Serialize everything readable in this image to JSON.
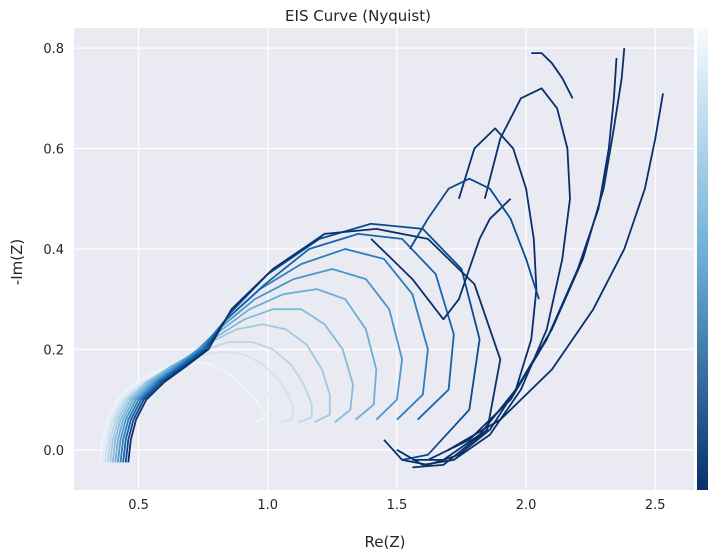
{
  "chart_data": {
    "type": "line",
    "title": "EIS Curve (Nyquist)",
    "xlabel": "Re(Z)",
    "ylabel": "-Im(Z)",
    "xlim": [
      0.25,
      2.65
    ],
    "ylim": [
      -0.08,
      0.84
    ],
    "xticks": [
      0.5,
      1.0,
      1.5,
      2.0,
      2.5
    ],
    "xtick_labels": [
      "0.5",
      "1.0",
      "1.5",
      "2.0",
      "2.5"
    ],
    "yticks": [
      0.0,
      0.2,
      0.4,
      0.6,
      0.8
    ],
    "ytick_labels": [
      "0.0",
      "0.2",
      "0.4",
      "0.6",
      "0.8"
    ],
    "grid": true,
    "colormap": {
      "name": "Blues",
      "low": "#f7fbff",
      "mid": "#6baed6",
      "high": "#08306b"
    },
    "colorbar": true,
    "background": "#eaeaf2",
    "series": [
      {
        "color": "#eef5fc",
        "x": [
          0.35,
          0.36,
          0.38,
          0.42,
          0.48,
          0.56,
          0.64,
          0.72,
          0.78,
          0.84,
          0.9,
          0.95,
          0.98,
          0.99,
          0.98,
          0.95
        ],
        "y": [
          -0.025,
          0.02,
          0.06,
          0.1,
          0.13,
          0.155,
          0.17,
          0.175,
          0.17,
          0.155,
          0.13,
          0.1,
          0.08,
          0.07,
          0.06,
          0.055
        ]
      },
      {
        "color": "#e0ecf8",
        "x": [
          0.36,
          0.37,
          0.39,
          0.43,
          0.5,
          0.58,
          0.66,
          0.74,
          0.81,
          0.88,
          0.94,
          0.99,
          1.02,
          1.04,
          1.03,
          1.0
        ],
        "y": [
          -0.025,
          0.02,
          0.06,
          0.1,
          0.13,
          0.155,
          0.17,
          0.18,
          0.18,
          0.17,
          0.15,
          0.12,
          0.09,
          0.07,
          0.06,
          0.055
        ]
      },
      {
        "color": "#d0e1f2",
        "x": [
          0.37,
          0.38,
          0.4,
          0.44,
          0.51,
          0.59,
          0.67,
          0.75,
          0.83,
          0.91,
          0.98,
          1.04,
          1.08,
          1.1,
          1.09,
          1.05
        ],
        "y": [
          -0.025,
          0.02,
          0.06,
          0.1,
          0.13,
          0.155,
          0.175,
          0.19,
          0.195,
          0.19,
          0.17,
          0.14,
          0.11,
          0.08,
          0.06,
          0.055
        ]
      },
      {
        "color": "#bad6eb",
        "x": [
          0.38,
          0.39,
          0.41,
          0.45,
          0.52,
          0.6,
          0.68,
          0.76,
          0.85,
          0.94,
          1.02,
          1.09,
          1.14,
          1.17,
          1.17,
          1.12
        ],
        "y": [
          -0.025,
          0.02,
          0.06,
          0.1,
          0.13,
          0.155,
          0.18,
          0.2,
          0.215,
          0.215,
          0.2,
          0.17,
          0.13,
          0.09,
          0.065,
          0.055
        ]
      },
      {
        "color": "#9ecae1",
        "x": [
          0.39,
          0.4,
          0.42,
          0.46,
          0.53,
          0.61,
          0.7,
          0.78,
          0.88,
          0.98,
          1.07,
          1.15,
          1.21,
          1.24,
          1.24,
          1.18
        ],
        "y": [
          -0.025,
          0.02,
          0.06,
          0.1,
          0.135,
          0.16,
          0.185,
          0.215,
          0.24,
          0.25,
          0.24,
          0.21,
          0.16,
          0.11,
          0.07,
          0.055
        ]
      },
      {
        "color": "#84bcdb",
        "x": [
          0.4,
          0.41,
          0.43,
          0.47,
          0.54,
          0.62,
          0.71,
          0.8,
          0.91,
          1.02,
          1.13,
          1.22,
          1.29,
          1.33,
          1.32,
          1.26
        ],
        "y": [
          -0.025,
          0.02,
          0.06,
          0.1,
          0.135,
          0.165,
          0.19,
          0.225,
          0.26,
          0.28,
          0.28,
          0.25,
          0.2,
          0.13,
          0.08,
          0.055
        ]
      },
      {
        "color": "#6baed6",
        "x": [
          0.41,
          0.42,
          0.44,
          0.48,
          0.55,
          0.63,
          0.72,
          0.81,
          0.93,
          1.06,
          1.19,
          1.3,
          1.38,
          1.42,
          1.41,
          1.34
        ],
        "y": [
          -0.025,
          0.02,
          0.06,
          0.1,
          0.135,
          0.165,
          0.195,
          0.235,
          0.28,
          0.31,
          0.32,
          0.3,
          0.24,
          0.16,
          0.09,
          0.06
        ]
      },
      {
        "color": "#4a98c9",
        "x": [
          0.42,
          0.43,
          0.45,
          0.49,
          0.56,
          0.64,
          0.73,
          0.82,
          0.95,
          1.1,
          1.25,
          1.38,
          1.47,
          1.52,
          1.5,
          1.42
        ],
        "y": [
          -0.025,
          0.02,
          0.06,
          0.1,
          0.135,
          0.165,
          0.2,
          0.245,
          0.3,
          0.34,
          0.36,
          0.34,
          0.28,
          0.18,
          0.1,
          0.06
        ]
      },
      {
        "color": "#2e7ebc",
        "x": [
          0.43,
          0.44,
          0.46,
          0.5,
          0.57,
          0.65,
          0.74,
          0.83,
          0.97,
          1.13,
          1.3,
          1.45,
          1.56,
          1.62,
          1.6,
          1.5
        ],
        "y": [
          -0.025,
          0.02,
          0.06,
          0.1,
          0.135,
          0.165,
          0.2,
          0.255,
          0.32,
          0.37,
          0.4,
          0.38,
          0.31,
          0.2,
          0.11,
          0.06
        ]
      },
      {
        "color": "#1764ab",
        "x": [
          0.44,
          0.45,
          0.47,
          0.51,
          0.58,
          0.66,
          0.75,
          0.84,
          0.99,
          1.16,
          1.35,
          1.52,
          1.65,
          1.72,
          1.7,
          1.58
        ],
        "y": [
          -0.025,
          0.02,
          0.06,
          0.1,
          0.135,
          0.165,
          0.2,
          0.26,
          0.33,
          0.4,
          0.43,
          0.42,
          0.35,
          0.23,
          0.12,
          0.06
        ]
      },
      {
        "color": "#0a4a90",
        "x": [
          0.45,
          0.46,
          0.48,
          0.52,
          0.59,
          0.67,
          0.76,
          0.85,
          1.0,
          1.2,
          1.4,
          1.6,
          1.75,
          1.82,
          1.78,
          1.62,
          1.52
        ],
        "y": [
          -0.025,
          0.02,
          0.06,
          0.1,
          0.135,
          0.165,
          0.2,
          0.27,
          0.35,
          0.42,
          0.45,
          0.44,
          0.36,
          0.22,
          0.08,
          -0.01,
          -0.02
        ]
      },
      {
        "color": "#08306b",
        "x": [
          0.46,
          0.47,
          0.49,
          0.53,
          0.6,
          0.68,
          0.77,
          0.86,
          1.02,
          1.22,
          1.42,
          1.62,
          1.8,
          1.9,
          1.85,
          1.68,
          1.56
        ],
        "y": [
          -0.025,
          0.02,
          0.06,
          0.1,
          0.135,
          0.165,
          0.2,
          0.28,
          0.36,
          0.43,
          0.44,
          0.42,
          0.33,
          0.18,
          0.04,
          -0.03,
          -0.035
        ]
      },
      {
        "color": "#08306b",
        "x": [
          1.45,
          1.52,
          1.62,
          1.74,
          1.86,
          1.96,
          2.02,
          2.04,
          2.03,
          2.0,
          1.95,
          1.88,
          1.8,
          1.74
        ],
        "y": [
          0.02,
          -0.02,
          -0.03,
          -0.01,
          0.04,
          0.12,
          0.22,
          0.32,
          0.42,
          0.52,
          0.6,
          0.64,
          0.6,
          0.5
        ]
      },
      {
        "color": "#08306b",
        "x": [
          1.5,
          1.6,
          1.72,
          1.86,
          1.98,
          2.08,
          2.14,
          2.17,
          2.16,
          2.12,
          2.06,
          1.98,
          1.9,
          1.84
        ],
        "y": [
          0.0,
          -0.03,
          -0.02,
          0.03,
          0.12,
          0.24,
          0.38,
          0.5,
          0.6,
          0.68,
          0.72,
          0.7,
          0.62,
          0.5
        ]
      },
      {
        "color": "#08306b",
        "x": [
          1.56,
          1.68,
          1.82,
          1.96,
          2.1,
          2.22,
          2.3,
          2.34,
          2.37,
          2.38
        ],
        "y": [
          -0.02,
          -0.02,
          0.03,
          0.12,
          0.24,
          0.38,
          0.52,
          0.64,
          0.74,
          0.8
        ]
      },
      {
        "color": "#08306b",
        "x": [
          1.62,
          1.78,
          1.94,
          2.08,
          2.2,
          2.28,
          2.32,
          2.34,
          2.35
        ],
        "y": [
          -0.02,
          0.02,
          0.1,
          0.22,
          0.36,
          0.48,
          0.6,
          0.7,
          0.78
        ]
      },
      {
        "color": "#08306b",
        "x": [
          1.7,
          1.9,
          2.1,
          2.26,
          2.38,
          2.46,
          2.5,
          2.53
        ],
        "y": [
          0.0,
          0.06,
          0.16,
          0.28,
          0.4,
          0.52,
          0.62,
          0.71
        ]
      },
      {
        "color": "#08306b",
        "x": [
          2.02,
          2.06,
          2.1,
          2.14,
          2.18
        ],
        "y": [
          0.79,
          0.79,
          0.77,
          0.74,
          0.7
        ]
      },
      {
        "color": "#08306b",
        "x": [
          1.4,
          1.48,
          1.56,
          1.62,
          1.68,
          1.74,
          1.78,
          1.82,
          1.86,
          1.9,
          1.94
        ],
        "y": [
          0.42,
          0.38,
          0.34,
          0.3,
          0.26,
          0.3,
          0.36,
          0.42,
          0.46,
          0.48,
          0.5
        ]
      },
      {
        "color": "#0a4a90",
        "x": [
          1.55,
          1.62,
          1.7,
          1.78,
          1.86,
          1.94,
          2.0,
          2.05
        ],
        "y": [
          0.4,
          0.46,
          0.52,
          0.54,
          0.52,
          0.46,
          0.38,
          0.3
        ]
      }
    ]
  }
}
